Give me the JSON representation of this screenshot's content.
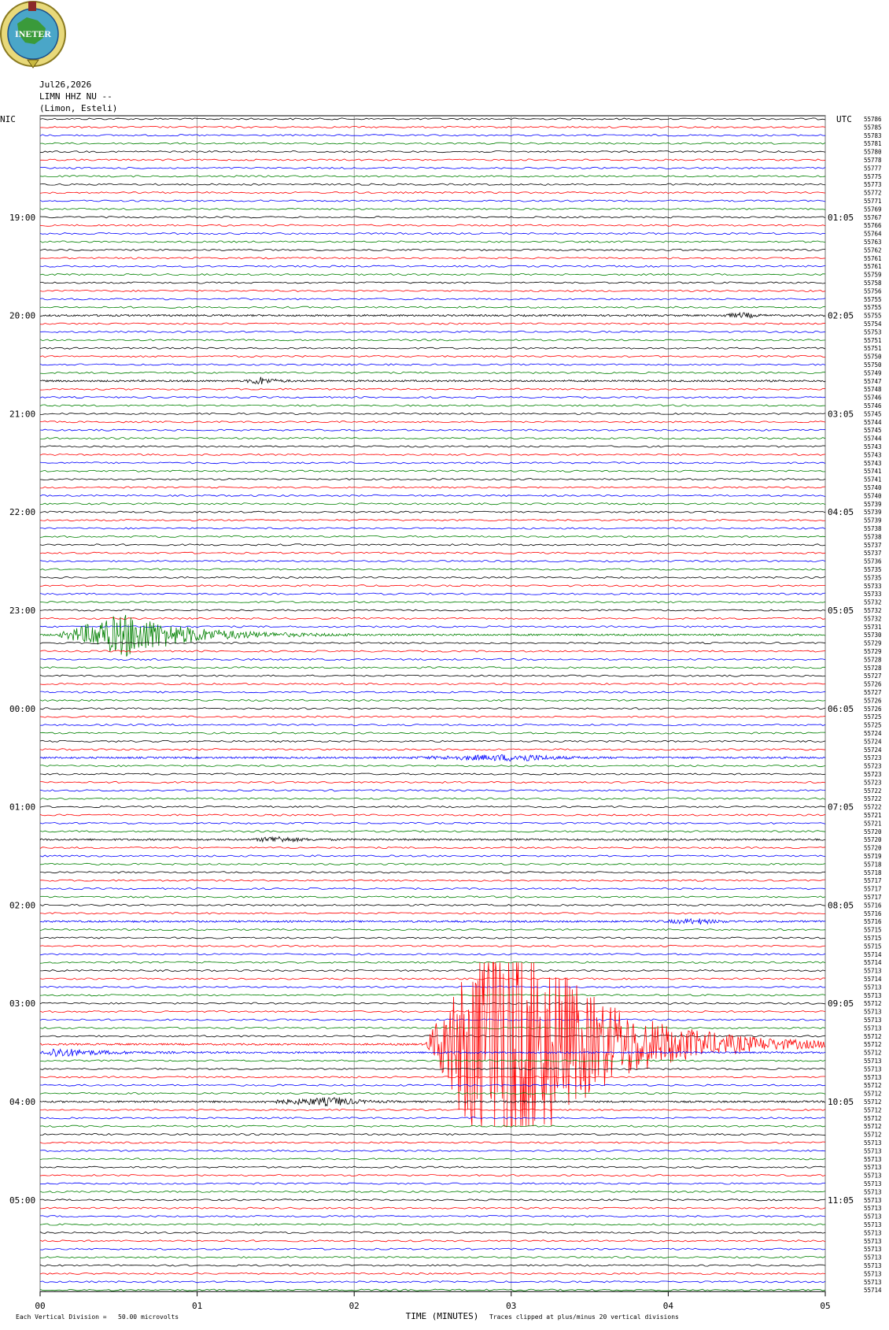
{
  "logo": {
    "text": "INETER"
  },
  "chart_data": {
    "type": "helicorder",
    "header": [
      "Jul26,2026",
      "LIMN HHZ NU --",
      "(Limon, Esteli)"
    ],
    "left_title": "NIC",
    "right_title": "UTC",
    "left_times": [
      "19:00",
      "20:00",
      "21:00",
      "22:00",
      "23:00",
      "00:00",
      "01:00",
      "02:00",
      "03:00",
      "04:00",
      "05:00"
    ],
    "right_times": [
      "01:05",
      "02:05",
      "03:05",
      "04:05",
      "05:05",
      "06:05",
      "07:05",
      "08:05",
      "09:05",
      "10:05",
      "11:05"
    ],
    "trace_colors": [
      "#000000",
      "#ff0000",
      "#0000ff",
      "#008000"
    ],
    "trace_labels": [
      55786,
      55785,
      55783,
      55781,
      55780,
      55778,
      55777,
      55775,
      55773,
      55772,
      55771,
      55769,
      55767,
      55766,
      55764,
      55763,
      55762,
      55761,
      55761,
      55759,
      55758,
      55756,
      55755,
      55755,
      55755,
      55754,
      55753,
      55751,
      55751,
      55750,
      55750,
      55749,
      55747,
      55748,
      55746,
      55746,
      55745,
      55744,
      55745,
      55744,
      55743,
      55743,
      55743,
      55741,
      55741,
      55740,
      55740,
      55739,
      55739,
      55739,
      55738,
      55738,
      55737,
      55737,
      55736,
      55735,
      55735,
      55733,
      55733,
      55732,
      55732,
      55732,
      55731,
      55730,
      55729,
      55729,
      55728,
      55728,
      55727,
      55726,
      55727,
      55726,
      55726,
      55725,
      55725,
      55724,
      55724,
      55724,
      55723,
      55723,
      55723,
      55723,
      55722,
      55722,
      55722,
      55721,
      55721,
      55720,
      55720,
      55720,
      55719,
      55718,
      55718,
      55717,
      55717,
      55717,
      55716,
      55716,
      55716,
      55715,
      55715,
      55715,
      55714,
      55714,
      55713,
      55714,
      55713,
      55713,
      55712,
      55713,
      55713,
      55713,
      55712,
      55712,
      55712,
      55713,
      55713,
      55713,
      55712,
      55712,
      55712,
      55712,
      55712,
      55712,
      55712,
      55713,
      55713,
      55713,
      55713,
      55713,
      55713,
      55713,
      55713,
      55713,
      55713,
      55713,
      55713,
      55713,
      55713,
      55713,
      55713,
      55713,
      55713,
      55714
    ],
    "xlim": [
      0,
      5
    ],
    "xticks": [
      {
        "value": 0,
        "label": "00"
      },
      {
        "value": 1,
        "label": "01"
      },
      {
        "value": 2,
        "label": "02"
      },
      {
        "value": 3,
        "label": "03"
      },
      {
        "value": 4,
        "label": "04"
      },
      {
        "value": 5,
        "label": "05"
      }
    ],
    "xlabel": "TIME (MINUTES)",
    "scale_note": "Each Vertical Division =   50.00 microvolts",
    "clip_note": "Traces clipped at plus/minus 20 vertical divisions",
    "grid": true
  }
}
